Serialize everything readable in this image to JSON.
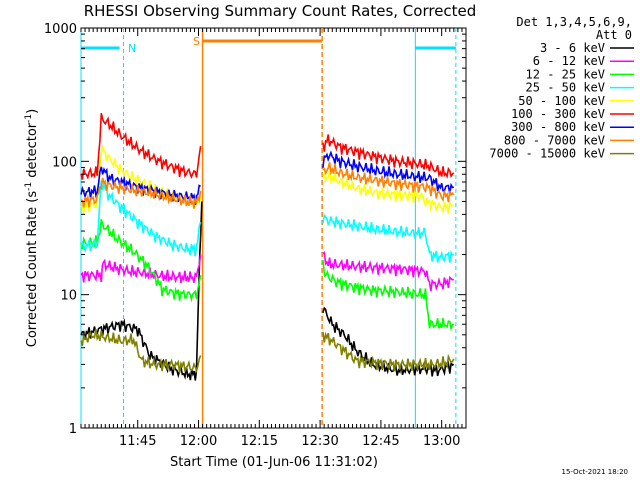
{
  "chart_data": {
    "type": "line",
    "title": "RHESSI Observing Summary Count Rates, Corrected",
    "xlabel": "Start Time (01-Jun-06 11:31:02)",
    "ylabel": "Corrected Count Rate (s⁻¹ detector⁻¹)",
    "ylabel_parts": {
      "main": "Corrected Count Rate (s",
      "sup1": "-1",
      "mid": " detector",
      "sup2": "-1",
      "end": ")"
    },
    "yscale": "log",
    "ylim": [
      1,
      1000
    ],
    "y_ticks": [
      "1",
      "10",
      "100",
      "1000"
    ],
    "xlim_minutes": [
      0,
      95
    ],
    "x_ticks": [
      {
        "label": "11:45",
        "min": 14
      },
      {
        "label": "12:00",
        "min": 29
      },
      {
        "label": "12:15",
        "min": 44
      },
      {
        "label": "12:30",
        "min": 59
      },
      {
        "label": "12:45",
        "min": 74
      },
      {
        "label": "13:00",
        "min": 89
      }
    ],
    "legend": {
      "header": [
        "Det 1,3,4,5,6,9,",
        "Att 0"
      ],
      "placement": "right"
    },
    "annotations": {
      "N_label": "N",
      "S_label": "S",
      "night_lines_min": [
        0,
        10.5,
        82.5,
        92.5
      ],
      "saa_lines_min": [
        30,
        59.5
      ],
      "night_color": "#00e0ff",
      "saa_color": "#ff8000"
    },
    "footer_date": "15-Oct-2021 18:20",
    "series": [
      {
        "name": "3 - 6 keV",
        "color": "#000000",
        "segments": [
          [
            [
              0,
              5
            ],
            [
              5,
              5.5
            ],
            [
              10,
              6
            ],
            [
              14,
              5.5
            ],
            [
              17,
              3.5
            ],
            [
              22,
              2.8
            ],
            [
              27,
              2.5
            ],
            [
              28.5,
              2.6
            ],
            [
              29.3,
              20
            ],
            [
              29.8,
              50
            ]
          ],
          [
            [
              59.7,
              8
            ],
            [
              62,
              6
            ],
            [
              65,
              5
            ],
            [
              68,
              3.8
            ],
            [
              72,
              3.0
            ],
            [
              78,
              2.7
            ],
            [
              85,
              2.8
            ],
            [
              88,
              2.7
            ],
            [
              91,
              2.9
            ],
            [
              92,
              3.0
            ]
          ]
        ]
      },
      {
        "name": "6 - 12 keV",
        "color": "#ff00ff",
        "segments": [
          [
            [
              0,
              14
            ],
            [
              5,
              14
            ],
            [
              5.5,
              17
            ],
            [
              8,
              16
            ],
            [
              12,
              15
            ],
            [
              16,
              14.5
            ],
            [
              20,
              13.8
            ],
            [
              25,
              13.5
            ],
            [
              28.5,
              13.5
            ],
            [
              29.5,
              20
            ]
          ],
          [
            [
              59.7,
              20
            ],
            [
              61,
              17
            ],
            [
              66,
              16.5
            ],
            [
              72,
              16
            ],
            [
              80,
              15.5
            ],
            [
              85,
              15
            ],
            [
              86,
              12
            ],
            [
              89,
              12
            ],
            [
              92,
              13
            ]
          ]
        ]
      },
      {
        "name": "12 - 25 keV",
        "color": "#00ff00",
        "segments": [
          [
            [
              0,
              24
            ],
            [
              4,
              25
            ],
            [
              5,
              34
            ],
            [
              6,
              32
            ],
            [
              9,
              26
            ],
            [
              13,
              21
            ],
            [
              16,
              17
            ],
            [
              18,
              14
            ],
            [
              20,
              11
            ],
            [
              23,
              10.3
            ],
            [
              26,
              10
            ],
            [
              28.5,
              10
            ],
            [
              29.5,
              14
            ]
          ],
          [
            [
              59.7,
              17
            ],
            [
              60.5,
              14
            ],
            [
              63,
              12.5
            ],
            [
              67,
              11.5
            ],
            [
              72,
              10.8
            ],
            [
              78,
              10.5
            ],
            [
              85,
              10
            ],
            [
              86,
              6
            ],
            [
              89,
              6
            ],
            [
              92,
              6
            ]
          ]
        ]
      },
      {
        "name": "25 - 50 keV",
        "color": "#00ffff",
        "segments": [
          [
            [
              0,
              23
            ],
            [
              4,
              24
            ],
            [
              5,
              70
            ],
            [
              7,
              55
            ],
            [
              10,
              45
            ],
            [
              14,
              35
            ],
            [
              18,
              28
            ],
            [
              22,
              24
            ],
            [
              26,
              22
            ],
            [
              28.5,
              22
            ],
            [
              29.5,
              35
            ]
          ],
          [
            [
              59.7,
              38
            ],
            [
              61,
              36
            ],
            [
              65,
              34
            ],
            [
              70,
              32
            ],
            [
              76,
              30
            ],
            [
              82,
              29
            ],
            [
              85,
              29
            ],
            [
              86,
              20
            ],
            [
              89,
              19
            ],
            [
              92,
              20
            ]
          ]
        ]
      },
      {
        "name": "50 - 100 keV",
        "color": "#ffff00",
        "segments": [
          [
            [
              0,
              45
            ],
            [
              4,
              48
            ],
            [
              5,
              125
            ],
            [
              7,
              105
            ],
            [
              10,
              85
            ],
            [
              14,
              72
            ],
            [
              18,
              62
            ],
            [
              22,
              55
            ],
            [
              26,
              50
            ],
            [
              28.5,
              48
            ],
            [
              29.5,
              55
            ]
          ],
          [
            [
              59.7,
              75
            ],
            [
              61,
              78
            ],
            [
              64,
              70
            ],
            [
              68,
              63
            ],
            [
              73,
              58
            ],
            [
              78,
              56
            ],
            [
              84,
              55
            ],
            [
              85,
              50
            ],
            [
              89,
              45
            ],
            [
              92,
              46
            ]
          ]
        ]
      },
      {
        "name": "100 - 300 keV",
        "color": "#ff0000",
        "segments": [
          [
            [
              0,
              80
            ],
            [
              4,
              82
            ],
            [
              5,
              210
            ],
            [
              7,
              190
            ],
            [
              10,
              155
            ],
            [
              14,
              125
            ],
            [
              18,
              105
            ],
            [
              22,
              92
            ],
            [
              26,
              83
            ],
            [
              28.5,
              80
            ],
            [
              29.5,
              130
            ]
          ],
          [
            [
              59.7,
              130
            ],
            [
              61,
              145
            ],
            [
              64,
              128
            ],
            [
              68,
              118
            ],
            [
              73,
              108
            ],
            [
              78,
              100
            ],
            [
              84,
              95
            ],
            [
              86,
              92
            ],
            [
              89,
              82
            ],
            [
              92,
              82
            ]
          ]
        ]
      },
      {
        "name": "300 - 800 keV",
        "color": "#0000ff",
        "segments": [
          [
            [
              0,
              58
            ],
            [
              4,
              60
            ],
            [
              5,
              90
            ],
            [
              7,
              75
            ],
            [
              10,
              70
            ],
            [
              14,
              64
            ],
            [
              18,
              60
            ],
            [
              22,
              56
            ],
            [
              26,
              54
            ],
            [
              28.5,
              53
            ],
            [
              29.5,
              65
            ]
          ],
          [
            [
              59.7,
              100
            ],
            [
              61,
              112
            ],
            [
              64,
              100
            ],
            [
              68,
              92
            ],
            [
              73,
              85
            ],
            [
              78,
              80
            ],
            [
              84,
              76
            ],
            [
              86,
              75
            ],
            [
              89,
              63
            ],
            [
              92,
              64
            ]
          ]
        ]
      },
      {
        "name": "800 - 7000 keV",
        "color": "#ff8000",
        "segments": [
          [
            [
              0,
              50
            ],
            [
              4,
              52
            ],
            [
              5,
              70
            ],
            [
              7,
              66
            ],
            [
              10,
              63
            ],
            [
              14,
              60
            ],
            [
              18,
              57
            ],
            [
              22,
              53
            ],
            [
              26,
              50
            ],
            [
              28.5,
              49
            ],
            [
              29.5,
              60
            ]
          ],
          [
            [
              59.7,
              82
            ],
            [
              61,
              90
            ],
            [
              64,
              82
            ],
            [
              68,
              76
            ],
            [
              73,
              72
            ],
            [
              78,
              68
            ],
            [
              84,
              65
            ],
            [
              86,
              63
            ],
            [
              89,
              55
            ],
            [
              92,
              56
            ]
          ]
        ]
      },
      {
        "name": "7000 - 15000 keV",
        "color": "#808000",
        "segments": [
          [
            [
              0,
              4.5
            ],
            [
              3,
              5
            ],
            [
              6,
              4.8
            ],
            [
              10,
              4.5
            ],
            [
              13,
              4.6
            ],
            [
              15,
              3.2
            ],
            [
              18,
              3.0
            ],
            [
              22,
              3.0
            ],
            [
              26,
              2.9
            ],
            [
              28.5,
              2.8
            ],
            [
              29.5,
              3.5
            ]
          ],
          [
            [
              59.7,
              5
            ],
            [
              62,
              4.5
            ],
            [
              65,
              3.8
            ],
            [
              68,
              3.2
            ],
            [
              72,
              3.1
            ],
            [
              78,
              3.0
            ],
            [
              84,
              3.0
            ],
            [
              87,
              3.0
            ],
            [
              90,
              3.1
            ],
            [
              92,
              3.3
            ]
          ]
        ]
      }
    ]
  }
}
